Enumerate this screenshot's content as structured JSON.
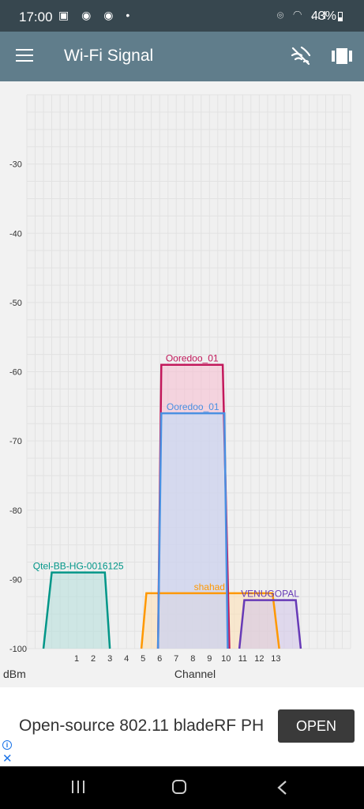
{
  "status_bar": {
    "time": "17:00",
    "battery": "43%",
    "left_icons": "▣ ◉ ◉ •",
    "right_icons": "⌾ ◠ .ıl"
  },
  "toolbar": {
    "title": "Wi-Fi Signal"
  },
  "chart_data": {
    "type": "area",
    "xlabel": "Channel",
    "ylabel": "dBm",
    "xlim": [
      -2,
      17.5
    ],
    "ylim": [
      -100,
      -20
    ],
    "x_ticks": [
      1,
      2,
      3,
      4,
      5,
      6,
      7,
      8,
      9,
      10,
      11,
      12,
      13
    ],
    "y_ticks": [
      -30,
      -40,
      -50,
      -60,
      -70,
      -80,
      -90,
      -100
    ],
    "grid": true,
    "series": [
      {
        "name": "Qtel-BB-HG-0016125",
        "color": "#009688",
        "fill": "#b2dfdb",
        "channel_low": -1,
        "channel_high": 3,
        "top_low": -0.5,
        "top_high": 2.7,
        "signal": -89
      },
      {
        "name": "shahad",
        "color": "#ff9800",
        "fill": "#ffe0b2",
        "channel_low": 4.9,
        "channel_high": 13.2,
        "top_low": 5.2,
        "top_high": 12.8,
        "signal": -92
      },
      {
        "name": "Ooredoo_01",
        "color": "#c2185b",
        "fill": "#f8bbd0",
        "channel_low": 5.9,
        "channel_high": 10.2,
        "top_low": 6.1,
        "top_high": 9.8,
        "signal": -59
      },
      {
        "name": "Ooredoo_01",
        "color": "#4a90e2",
        "fill": "#bbdefb",
        "channel_low": 5.9,
        "channel_high": 10.1,
        "top_low": 6.1,
        "top_high": 9.9,
        "signal": -66
      },
      {
        "name": "VENUGOPAL",
        "color": "#673ab7",
        "fill": "#d1c4e9",
        "channel_low": 10.8,
        "channel_high": 14.5,
        "top_low": 11.1,
        "top_high": 14.2,
        "signal": -93
      }
    ]
  },
  "ad": {
    "text": "Open-source 802.11 bladeRF PH",
    "button": "OPEN",
    "info": "i",
    "close": "✕"
  }
}
